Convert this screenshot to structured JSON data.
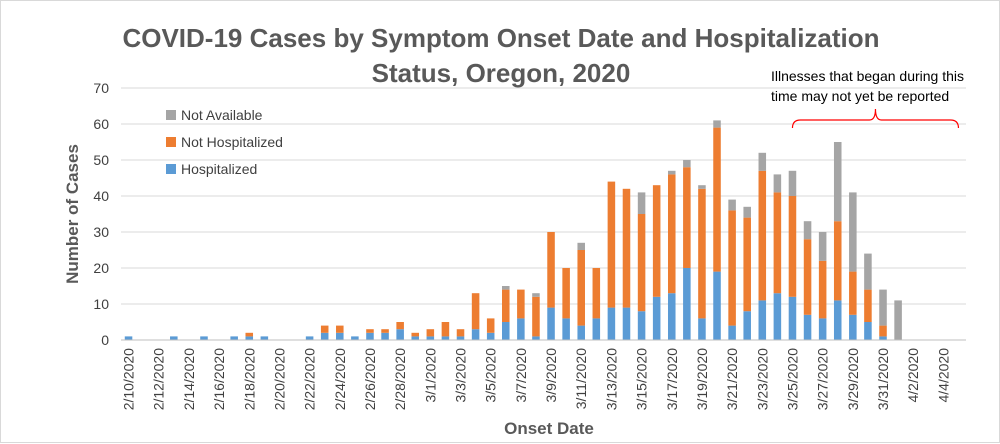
{
  "chart_data": {
    "type": "bar",
    "stacked": true,
    "title": "COVID-19 Cases by Symptom Onset Date and Hospitalization Status,  Oregon, 2020",
    "title_lines": [
      "COVID-19 Cases by Symptom Onset Date and Hospitalization",
      "Status,  Oregon, 2020"
    ],
    "xlabel": "Onset Date",
    "ylabel": "Number of Cases",
    "ylim": [
      0,
      70
    ],
    "yticks": [
      0,
      10,
      20,
      30,
      40,
      50,
      60,
      70
    ],
    "grid": true,
    "legend_position": "top-left",
    "categories": [
      "2/10/2020",
      "2/11/2020",
      "2/12/2020",
      "2/13/2020",
      "2/14/2020",
      "2/15/2020",
      "2/16/2020",
      "2/17/2020",
      "2/18/2020",
      "2/19/2020",
      "2/20/2020",
      "2/21/2020",
      "2/22/2020",
      "2/23/2020",
      "2/24/2020",
      "2/25/2020",
      "2/26/2020",
      "2/27/2020",
      "2/28/2020",
      "2/29/2020",
      "3/1/2020",
      "3/2/2020",
      "3/3/2020",
      "3/4/2020",
      "3/5/2020",
      "3/6/2020",
      "3/7/2020",
      "3/8/2020",
      "3/9/2020",
      "3/10/2020",
      "3/11/2020",
      "3/12/2020",
      "3/13/2020",
      "3/14/2020",
      "3/15/2020",
      "3/16/2020",
      "3/17/2020",
      "3/18/2020",
      "3/19/2020",
      "3/20/2020",
      "3/21/2020",
      "3/22/2020",
      "3/23/2020",
      "3/24/2020",
      "3/25/2020",
      "3/26/2020",
      "3/27/2020",
      "3/28/2020",
      "3/29/2020",
      "3/30/2020",
      "3/31/2020",
      "4/1/2020",
      "4/2/2020",
      "4/3/2020",
      "4/4/2020",
      "4/5/2020"
    ],
    "tick_labels": [
      "2/10/2020",
      "2/12/2020",
      "2/14/2020",
      "2/16/2020",
      "2/18/2020",
      "2/20/2020",
      "2/22/2020",
      "2/24/2020",
      "2/26/2020",
      "2/28/2020",
      "3/1/2020",
      "3/3/2020",
      "3/5/2020",
      "3/7/2020",
      "3/9/2020",
      "3/11/2020",
      "3/13/2020",
      "3/15/2020",
      "3/17/2020",
      "3/19/2020",
      "3/21/2020",
      "3/23/2020",
      "3/25/2020",
      "3/27/2020",
      "3/29/2020",
      "3/31/2020",
      "4/2/2020",
      "4/4/2020"
    ],
    "series": [
      {
        "name": "Hospitalized",
        "color": "#5b9bd5",
        "values": [
          1,
          0,
          0,
          1,
          0,
          1,
          0,
          1,
          1,
          1,
          0,
          0,
          1,
          2,
          2,
          1,
          2,
          2,
          3,
          1,
          1,
          1,
          1,
          3,
          2,
          5,
          6,
          1,
          9,
          6,
          4,
          6,
          9,
          9,
          8,
          12,
          13,
          20,
          6,
          19,
          4,
          8,
          11,
          13,
          12,
          7,
          6,
          11,
          7,
          5,
          1,
          0,
          0,
          0,
          0,
          0
        ]
      },
      {
        "name": "Not Hospitalized",
        "color": "#ed7d31",
        "values": [
          0,
          0,
          0,
          0,
          0,
          0,
          0,
          0,
          1,
          0,
          0,
          0,
          0,
          2,
          2,
          0,
          1,
          1,
          2,
          1,
          2,
          4,
          2,
          10,
          4,
          9,
          8,
          11,
          21,
          14,
          21,
          14,
          35,
          33,
          27,
          31,
          33,
          28,
          36,
          40,
          32,
          26,
          36,
          28,
          28,
          21,
          16,
          22,
          12,
          9,
          3,
          0,
          0,
          0,
          0,
          0
        ]
      },
      {
        "name": "Not Available",
        "color": "#a5a5a5",
        "values": [
          0,
          0,
          0,
          0,
          0,
          0,
          0,
          0,
          0,
          0,
          0,
          0,
          0,
          0,
          0,
          0,
          0,
          0,
          0,
          0,
          0,
          0,
          0,
          0,
          0,
          1,
          0,
          1,
          0,
          0,
          2,
          0,
          0,
          0,
          6,
          0,
          1,
          2,
          1,
          2,
          3,
          3,
          5,
          5,
          7,
          5,
          8,
          22,
          22,
          10,
          10,
          11,
          0,
          0,
          0,
          0
        ]
      }
    ],
    "annotation": {
      "lines": [
        "Illnesses that began during this",
        "time may not yet be reported"
      ],
      "bracket_from": "3/25/2020",
      "bracket_to": "4/5/2020",
      "color": "#ff0000"
    }
  }
}
